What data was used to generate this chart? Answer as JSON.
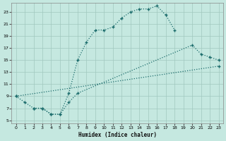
{
  "bg_color": "#c5e8e0",
  "line_color": "#1a6b6b",
  "xlabel": "Humidex (Indice chaleur)",
  "xlim": [
    -0.5,
    23.5
  ],
  "ylim": [
    4.5,
    24.5
  ],
  "xticks": [
    0,
    1,
    2,
    3,
    4,
    5,
    6,
    7,
    8,
    9,
    10,
    11,
    12,
    13,
    14,
    15,
    16,
    17,
    18,
    19,
    20,
    21,
    22,
    23
  ],
  "yticks": [
    5,
    7,
    9,
    11,
    13,
    15,
    17,
    19,
    21,
    23
  ],
  "line1_x": [
    0,
    1,
    2,
    3,
    4,
    5,
    6,
    7,
    8,
    9,
    10,
    11,
    12,
    13,
    14,
    15,
    16,
    17,
    18
  ],
  "line1_y": [
    9,
    8,
    7,
    7,
    6,
    6,
    9.5,
    15,
    18,
    20,
    20,
    20.5,
    22,
    23,
    23.5,
    23.5,
    24,
    22.5,
    20
  ],
  "line2_x": [
    0,
    23
  ],
  "line2_y": [
    9,
    14
  ],
  "line3_x": [
    2,
    3,
    4,
    5,
    6,
    7,
    20,
    21,
    22,
    23
  ],
  "line3_y": [
    7,
    7,
    6,
    6,
    8,
    9.5,
    17.5,
    16,
    15.5,
    15
  ]
}
